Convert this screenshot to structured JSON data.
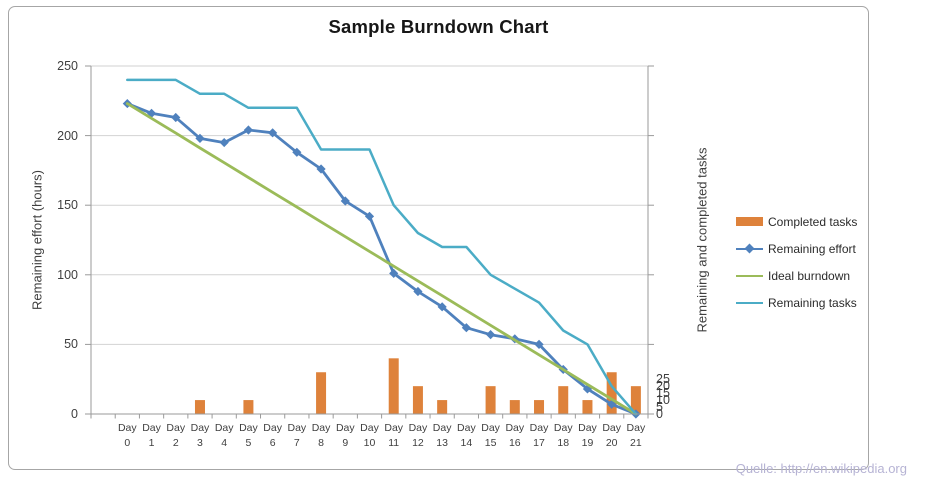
{
  "title": "Sample Burndown Chart",
  "footer": {
    "source_text": "Quelle: http://en.wikipedia.org"
  },
  "style_colors": {
    "gridline": "#d2d2d2",
    "axis_line": "#9a9a9a",
    "text": "#3f3f3f",
    "footer_text": "#b6b3d4",
    "frame_border": "#a6a6a6"
  },
  "chart_data": {
    "type": "bar",
    "subtype": "combo-bar-and-lines",
    "title": "Sample Burndown Chart",
    "categories": [
      "Day 0",
      "Day 1",
      "Day 2",
      "Day 3",
      "Day 4",
      "Day 5",
      "Day 6",
      "Day 7",
      "Day 8",
      "Day 9",
      "Day 10",
      "Day 11",
      "Day 12",
      "Day 13",
      "Day 14",
      "Day 15",
      "Day 16",
      "Day 17",
      "Day 18",
      "Day 19",
      "Day 20",
      "Day 21"
    ],
    "axes": {
      "left": {
        "label": "Remaining effort (hours)",
        "min": 0,
        "max": 250,
        "ticks": [
          0,
          50,
          100,
          150,
          200,
          250
        ]
      },
      "right": {
        "label": "Remaining and completed tasks",
        "min": 0,
        "max": 25,
        "ticks": [
          0,
          5,
          10,
          15,
          20,
          25
        ]
      }
    },
    "gridlines": "horizontal",
    "legend_position": "right",
    "series": [
      {
        "name": "Completed tasks",
        "type": "bar",
        "axis": "right",
        "color": "#de823b",
        "values": [
          0,
          0,
          0,
          1,
          0,
          1,
          0,
          0,
          3,
          0,
          0,
          4,
          2,
          1,
          0,
          2,
          1,
          1,
          2,
          1,
          3,
          2
        ]
      },
      {
        "name": "Remaining effort",
        "type": "line",
        "axis": "left",
        "color": "#4f81bd",
        "marker": "diamond",
        "values": [
          223,
          216,
          213,
          198,
          195,
          204,
          202,
          188,
          176,
          153,
          142,
          101,
          88,
          77,
          62,
          57,
          54,
          50,
          32,
          18,
          7,
          0
        ]
      },
      {
        "name": "Ideal burndown",
        "type": "line",
        "axis": "left",
        "color": "#9bbb59",
        "values": [
          223,
          212.4,
          201.8,
          191.1,
          180.5,
          169.9,
          159.3,
          148.7,
          138,
          127.4,
          116.8,
          106.2,
          95.6,
          85,
          74.3,
          63.7,
          53.1,
          42.5,
          31.9,
          21.2,
          10.6,
          0
        ]
      },
      {
        "name": "Remaining tasks",
        "type": "line",
        "axis": "right",
        "color": "#4bacc6",
        "values": [
          24,
          24,
          24,
          23,
          23,
          22,
          22,
          22,
          19,
          19,
          19,
          15,
          13,
          12,
          12,
          10,
          9,
          8,
          6,
          5,
          2,
          0
        ]
      }
    ]
  }
}
